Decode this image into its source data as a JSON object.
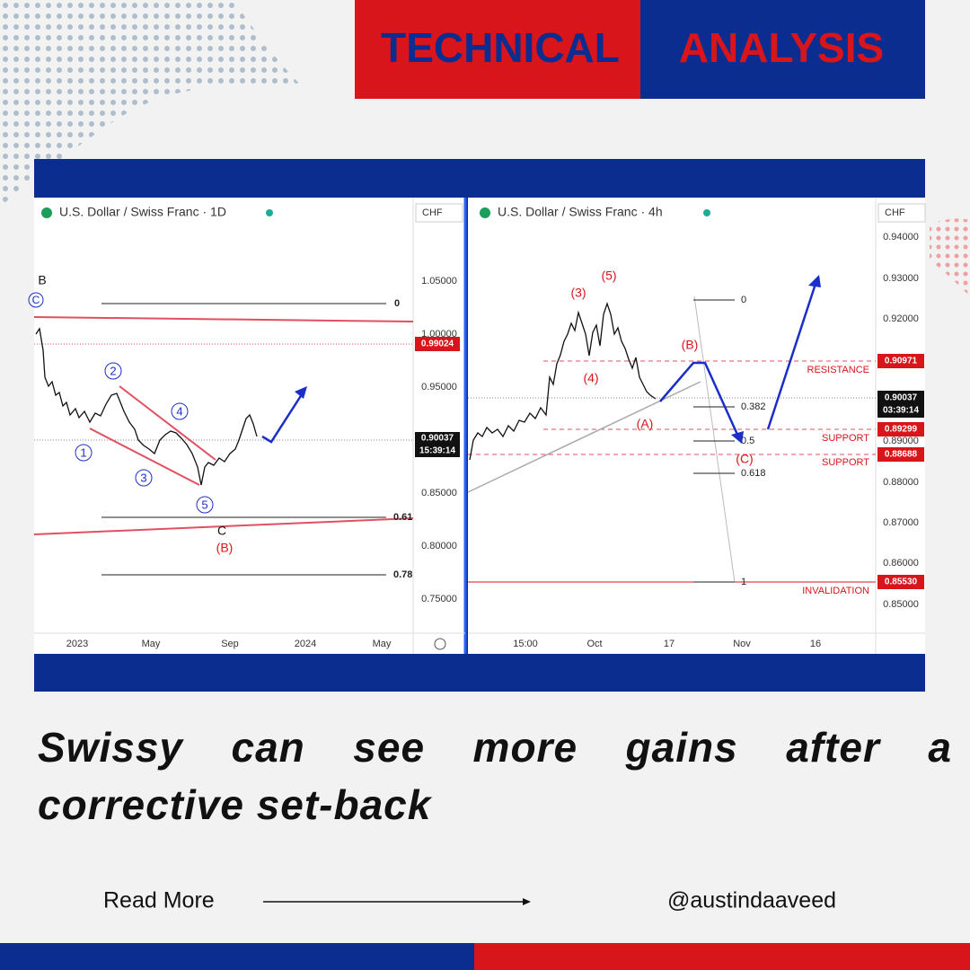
{
  "header": {
    "left": "TECHNICAL",
    "right": "ANALYSIS"
  },
  "panels": [
    {
      "title": "U.S. Dollar / Swiss Franc · 1D",
      "currency": "CHF",
      "price_labels": [
        "1.05000",
        "1.00000",
        "0.95000",
        "0.85000",
        "0.80000",
        "0.75000"
      ],
      "badges": [
        {
          "price": "0.99024"
        },
        {
          "price": "0.90037",
          "time": "15:39:14"
        }
      ],
      "time_labels": [
        "2023",
        "May",
        "Sep",
        "2024",
        "May"
      ],
      "fib_labels": [
        "0",
        "0.61",
        "0.78"
      ],
      "waves": [
        "1",
        "2",
        "3",
        "4",
        "5"
      ],
      "annotations": [
        "B",
        "C",
        "C",
        "(B)"
      ]
    },
    {
      "title": "U.S. Dollar / Swiss Franc · 4h",
      "currency": "CHF",
      "price_labels": [
        "0.94000",
        "0.93000",
        "0.92000",
        "0.89000",
        "0.88000",
        "0.87000",
        "0.86000",
        "0.85000"
      ],
      "badges": [
        {
          "price": "0.90971"
        },
        {
          "price": "0.90037",
          "time": "03:39:14"
        },
        {
          "price": "0.89299"
        },
        {
          "price": "0.88688"
        },
        {
          "price": "0.85530"
        }
      ],
      "time_labels": [
        "15:00",
        "Oct",
        "17",
        "Nov",
        "16"
      ],
      "fib_labels": [
        "0",
        "0.382",
        "0.5",
        "0.618",
        "1"
      ],
      "waves": [
        "(3)",
        "(5)",
        "(4)",
        "(B)",
        "(A)",
        "(C)"
      ],
      "levels": [
        "RESISTANCE",
        "SUPPORT",
        "SUPPORT",
        "INVALIDATION"
      ]
    }
  ],
  "headline": "Swissy can see more gains after a corrective set-back",
  "footer": {
    "link": "Read More",
    "handle": "@austindaaveed"
  }
}
